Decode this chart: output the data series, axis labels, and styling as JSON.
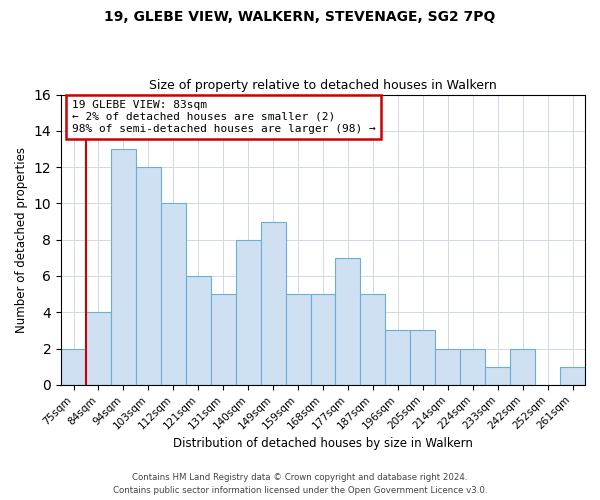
{
  "title1": "19, GLEBE VIEW, WALKERN, STEVENAGE, SG2 7PQ",
  "title2": "Size of property relative to detached houses in Walkern",
  "xlabel": "Distribution of detached houses by size in Walkern",
  "ylabel": "Number of detached properties",
  "bar_labels": [
    "75sqm",
    "84sqm",
    "94sqm",
    "103sqm",
    "112sqm",
    "121sqm",
    "131sqm",
    "140sqm",
    "149sqm",
    "159sqm",
    "168sqm",
    "177sqm",
    "187sqm",
    "196sqm",
    "205sqm",
    "214sqm",
    "224sqm",
    "233sqm",
    "242sqm",
    "252sqm",
    "261sqm"
  ],
  "bar_values": [
    2,
    4,
    13,
    12,
    10,
    6,
    5,
    8,
    9,
    5,
    5,
    7,
    5,
    3,
    3,
    2,
    2,
    1,
    2,
    0,
    1
  ],
  "bar_color": "#cfe0f3",
  "bar_edge_color": "#6aaed6",
  "highlight_color": "#cc0000",
  "annotation_lines": [
    "19 GLEBE VIEW: 83sqm",
    "← 2% of detached houses are smaller (2)",
    "98% of semi-detached houses are larger (98) →"
  ],
  "annotation_box_edge": "#cc0000",
  "ylim": [
    0,
    16
  ],
  "yticks": [
    0,
    2,
    4,
    6,
    8,
    10,
    12,
    14,
    16
  ],
  "footer1": "Contains HM Land Registry data © Crown copyright and database right 2024.",
  "footer2": "Contains public sector information licensed under the Open Government Licence v3.0.",
  "bg_color": "#ffffff",
  "grid_color": "#d0d8e4"
}
